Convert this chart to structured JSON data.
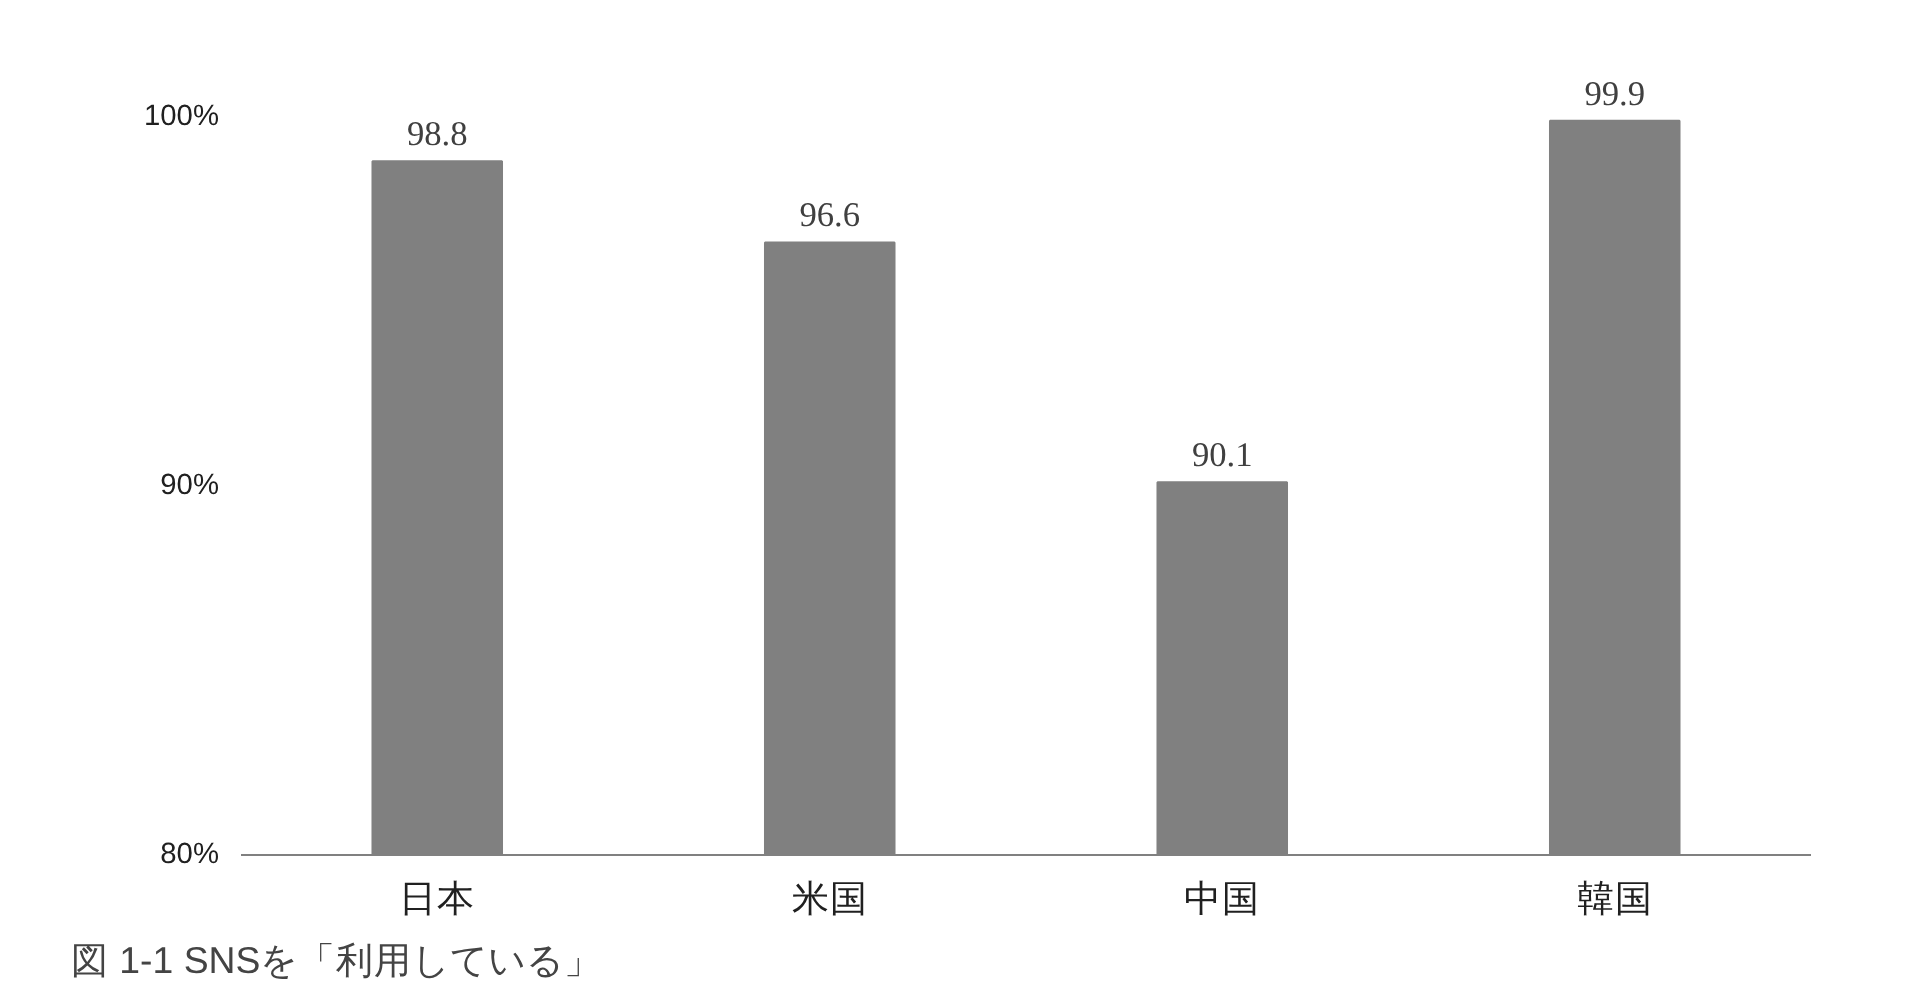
{
  "chart_data": {
    "type": "bar",
    "title": "図 1-1 SNSを「利用している」",
    "categories": [
      "日本",
      "米国",
      "中国",
      "韓国"
    ],
    "values": [
      98.8,
      96.6,
      90.1,
      99.9
    ],
    "color": "#808080",
    "ylim": [
      80,
      100
    ],
    "yticks": [
      {
        "value": 80,
        "label": "80%"
      },
      {
        "value": 90,
        "label": "90%"
      },
      {
        "value": 100,
        "label": "100%"
      }
    ],
    "data_labels": true,
    "grid": false
  }
}
